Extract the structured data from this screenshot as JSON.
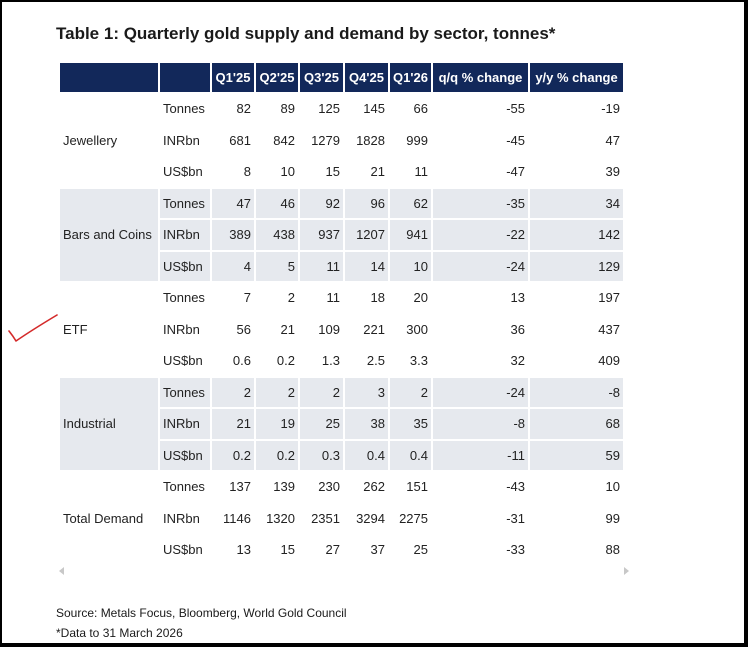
{
  "title": "Table 1: Quarterly gold supply and demand by sector, tonnes*",
  "headers": [
    "",
    "",
    "Q1'25",
    "Q2'25",
    "Q3'25",
    "Q4'25",
    "Q1'26",
    "q/q % change",
    "y/y % change"
  ],
  "sectors": [
    {
      "name": "Jewellery",
      "rows": [
        {
          "unit": "Tonnes",
          "values": [
            "82",
            "89",
            "125",
            "145",
            "66",
            "-55",
            "-19"
          ]
        },
        {
          "unit": "INRbn",
          "values": [
            "681",
            "842",
            "1279",
            "1828",
            "999",
            "-45",
            "47"
          ]
        },
        {
          "unit": "US$bn",
          "values": [
            "8",
            "10",
            "15",
            "21",
            "11",
            "-47",
            "39"
          ]
        }
      ]
    },
    {
      "name": "Bars and Coins",
      "rows": [
        {
          "unit": "Tonnes",
          "values": [
            "47",
            "46",
            "92",
            "96",
            "62",
            "-35",
            "34"
          ]
        },
        {
          "unit": "INRbn",
          "values": [
            "389",
            "438",
            "937",
            "1207",
            "941",
            "-22",
            "142"
          ]
        },
        {
          "unit": "US$bn",
          "values": [
            "4",
            "5",
            "11",
            "14",
            "10",
            "-24",
            "129"
          ]
        }
      ]
    },
    {
      "name": "ETF",
      "rows": [
        {
          "unit": "Tonnes",
          "values": [
            "7",
            "2",
            "11",
            "18",
            "20",
            "13",
            "197"
          ]
        },
        {
          "unit": "INRbn",
          "values": [
            "56",
            "21",
            "109",
            "221",
            "300",
            "36",
            "437"
          ]
        },
        {
          "unit": "US$bn",
          "values": [
            "0.6",
            "0.2",
            "1.3",
            "2.5",
            "3.3",
            "32",
            "409"
          ]
        }
      ]
    },
    {
      "name": "Industrial",
      "rows": [
        {
          "unit": "Tonnes",
          "values": [
            "2",
            "2",
            "2",
            "3",
            "2",
            "-24",
            "-8"
          ]
        },
        {
          "unit": "INRbn",
          "values": [
            "21",
            "19",
            "25",
            "38",
            "35",
            "-8",
            "68"
          ]
        },
        {
          "unit": "US$bn",
          "values": [
            "0.2",
            "0.2",
            "0.3",
            "0.4",
            "0.4",
            "-11",
            "59"
          ]
        }
      ]
    },
    {
      "name": "Total Demand",
      "rows": [
        {
          "unit": "Tonnes",
          "values": [
            "137",
            "139",
            "230",
            "262",
            "151",
            "-43",
            "10"
          ]
        },
        {
          "unit": "INRbn",
          "values": [
            "1146",
            "1320",
            "2351",
            "3294",
            "2275",
            "-31",
            "99"
          ]
        },
        {
          "unit": "US$bn",
          "values": [
            "13",
            "15",
            "27",
            "37",
            "25",
            "-33",
            "88"
          ]
        }
      ]
    }
  ],
  "source": "Source: Metals Focus, Bloomberg, World Gold Council",
  "footnote": "*Data to 31 March 2026",
  "colors": {
    "header_bg": "#12285a",
    "row_shade": "#e6e9ee",
    "annotation": "#d42a2a"
  }
}
